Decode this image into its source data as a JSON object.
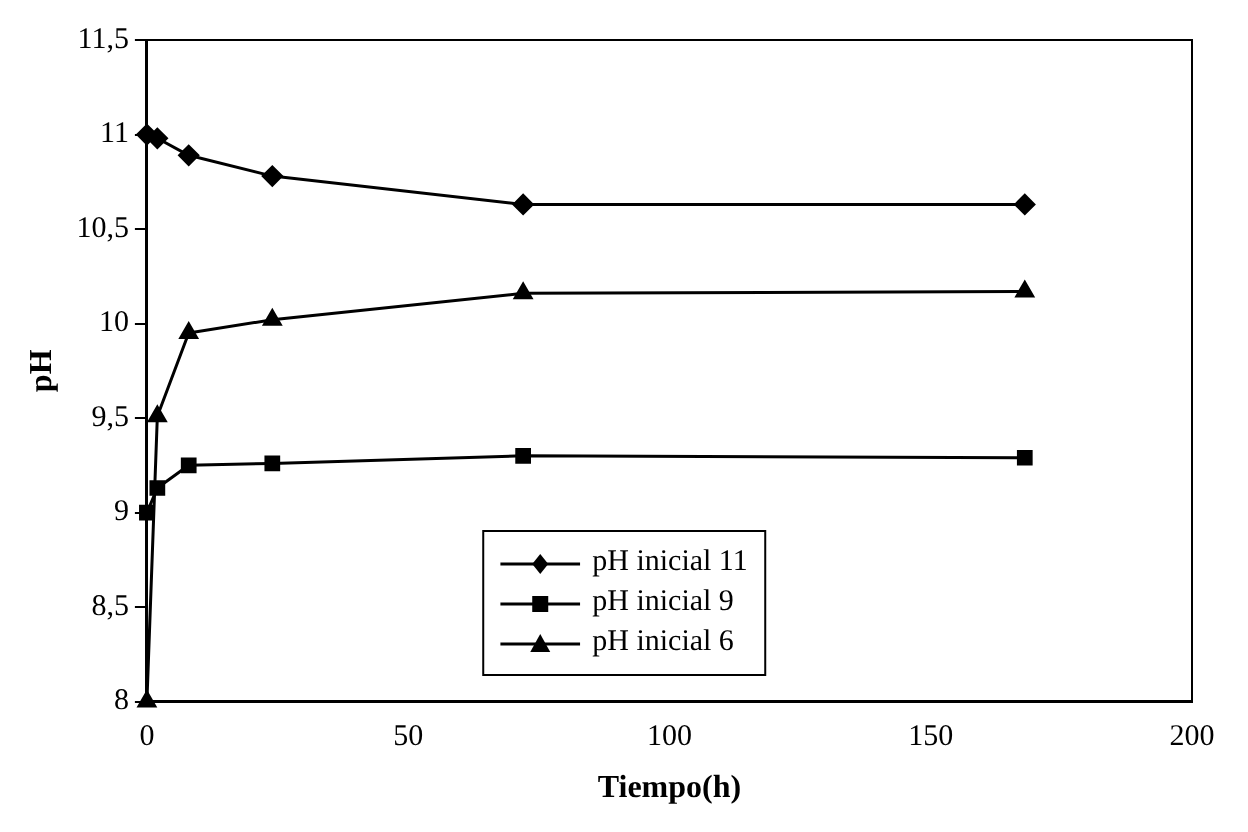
{
  "chart_data": {
    "type": "line",
    "xlabel": "Tiempo(h)",
    "ylabel": "pH",
    "xlim": [
      0,
      200
    ],
    "xticks": [
      0,
      50,
      100,
      150,
      200
    ],
    "ylim": [
      8,
      11.5
    ],
    "yticks": [
      8,
      {
        "value": 8.5,
        "label": "8,5"
      },
      9,
      {
        "value": 9.5,
        "label": "9,5"
      },
      10,
      {
        "value": 10.5,
        "label": "10,5"
      },
      11,
      {
        "value": 11.5,
        "label": "11,5"
      }
    ],
    "grid": false,
    "legend": "bottom",
    "line_style": "solid",
    "series": [
      {
        "name": "pH inicial 11",
        "color": "#000000",
        "marker": "diamond",
        "x": [
          0,
          2,
          8,
          24,
          72,
          168
        ],
        "values": [
          11.0,
          10.98,
          10.89,
          10.78,
          10.63,
          10.63
        ]
      },
      {
        "name": "pH inicial 9",
        "color": "#000000",
        "marker": "square",
        "x": [
          0,
          2,
          8,
          24,
          72,
          168
        ],
        "values": [
          9.0,
          9.13,
          9.25,
          9.26,
          9.3,
          9.29
        ]
      },
      {
        "name": "pH inicial 6",
        "color": "#000000",
        "marker": "triangle",
        "x": [
          0,
          2,
          8,
          24,
          72,
          168
        ],
        "values": [
          8.0,
          9.51,
          9.95,
          10.02,
          10.16,
          10.17
        ]
      }
    ]
  }
}
